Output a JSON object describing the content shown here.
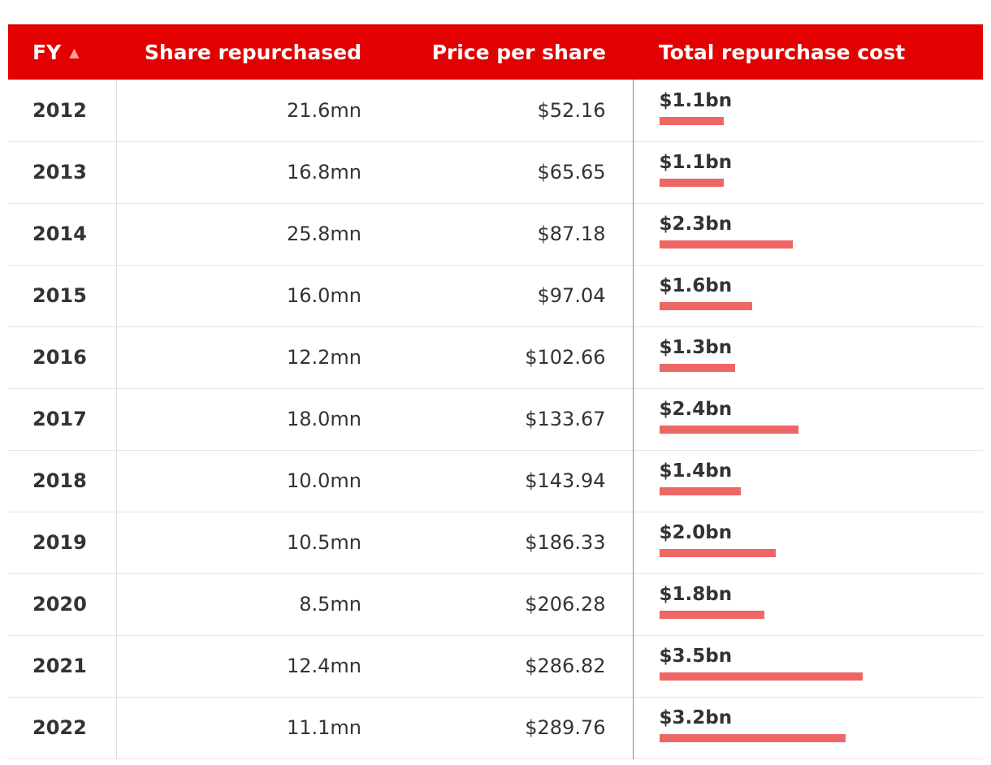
{
  "chart_data": {
    "type": "table",
    "columns": [
      {
        "key": "fy",
        "label": "FY"
      },
      {
        "key": "shares",
        "label": "Share repurchased"
      },
      {
        "key": "price",
        "label": "Price per share"
      },
      {
        "key": "total",
        "label": "Total repurchase cost"
      }
    ],
    "sort": {
      "column": "fy",
      "direction": "ascending"
    },
    "bar_color": "#ee6666",
    "header_color": "#e30000",
    "bar_max_value": 4.2,
    "rows": [
      {
        "fy": "2012",
        "shares": "21.6mn",
        "price": "$52.16",
        "total": "$1.1bn",
        "total_value": 1.1
      },
      {
        "fy": "2013",
        "shares": "16.8mn",
        "price": "$65.65",
        "total": "$1.1bn",
        "total_value": 1.1
      },
      {
        "fy": "2014",
        "shares": "25.8mn",
        "price": "$87.18",
        "total": "$2.3bn",
        "total_value": 2.3
      },
      {
        "fy": "2015",
        "shares": "16.0mn",
        "price": "$97.04",
        "total": "$1.6bn",
        "total_value": 1.6
      },
      {
        "fy": "2016",
        "shares": "12.2mn",
        "price": "$102.66",
        "total": "$1.3bn",
        "total_value": 1.3
      },
      {
        "fy": "2017",
        "shares": "18.0mn",
        "price": "$133.67",
        "total": "$2.4bn",
        "total_value": 2.4
      },
      {
        "fy": "2018",
        "shares": "10.0mn",
        "price": "$143.94",
        "total": "$1.4bn",
        "total_value": 1.4
      },
      {
        "fy": "2019",
        "shares": "10.5mn",
        "price": "$186.33",
        "total": "$2.0bn",
        "total_value": 2.0
      },
      {
        "fy": "2020",
        "shares": "8.5mn",
        "price": "$206.28",
        "total": "$1.8bn",
        "total_value": 1.8
      },
      {
        "fy": "2021",
        "shares": "12.4mn",
        "price": "$286.82",
        "total": "$3.5bn",
        "total_value": 3.5
      },
      {
        "fy": "2022",
        "shares": "11.1mn",
        "price": "$289.76",
        "total": "$3.2bn",
        "total_value": 3.2
      }
    ]
  }
}
